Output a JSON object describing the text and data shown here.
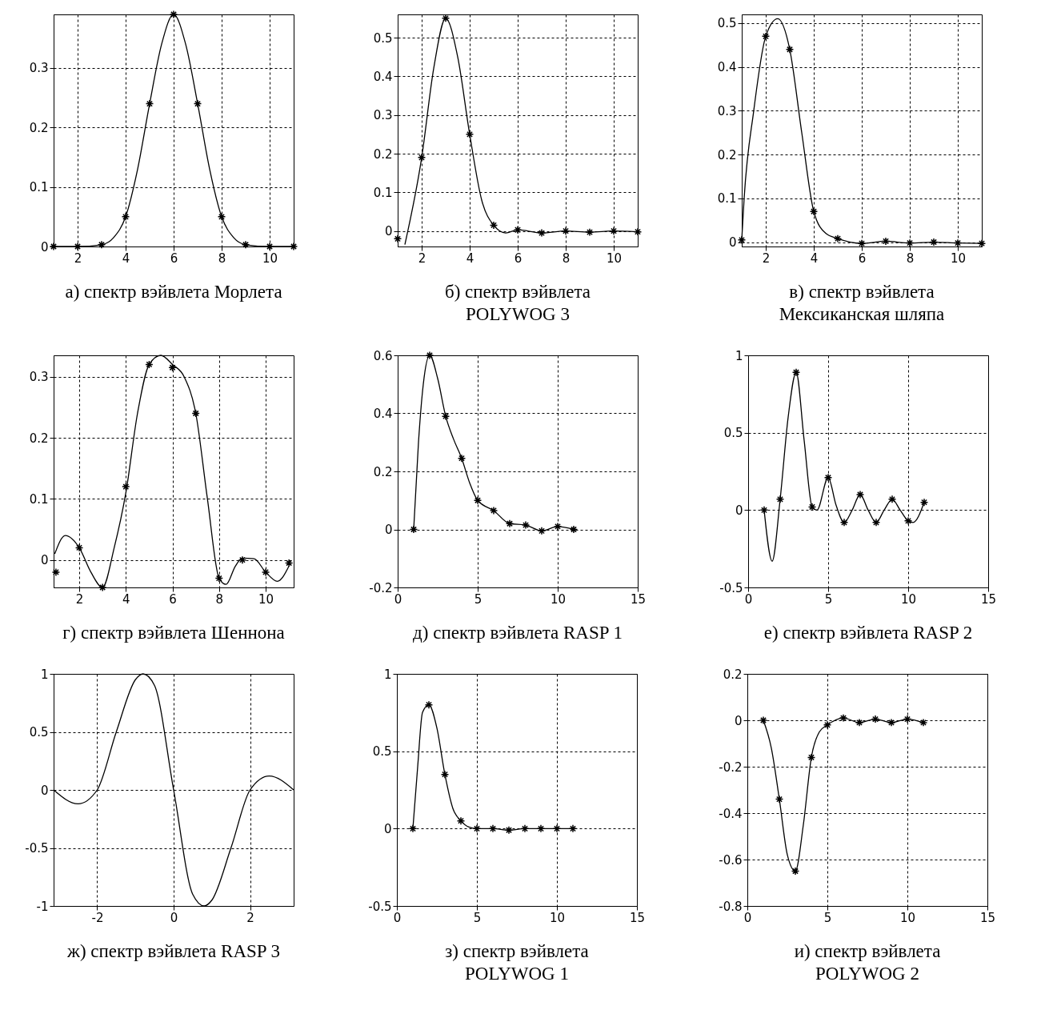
{
  "chart_data": [
    {
      "type": "line",
      "title": "а) спектр вэйвлета Морлета",
      "xlim": [
        1,
        11
      ],
      "xticks": [
        2,
        4,
        6,
        8,
        10
      ],
      "ylim": [
        0,
        0.39
      ],
      "yticks": [
        0,
        0.1,
        0.2,
        0.3
      ],
      "grid": true,
      "series": [
        {
          "type": "line",
          "color": "#000000",
          "marker": "none",
          "x": [
            1,
            2,
            3,
            3.5,
            4,
            4.5,
            5,
            5.5,
            6,
            6.5,
            7,
            7.5,
            8,
            8.5,
            9,
            10,
            11
          ],
          "values": [
            0,
            0,
            0.003,
            0.015,
            0.05,
            0.13,
            0.24,
            0.34,
            0.39,
            0.34,
            0.24,
            0.13,
            0.05,
            0.015,
            0.003,
            0,
            0
          ]
        },
        {
          "type": "scatter",
          "color": "#000000",
          "marker": "cross",
          "x": [
            1,
            2,
            3,
            4,
            5,
            6,
            7,
            8,
            9,
            10,
            11
          ],
          "values": [
            0,
            0,
            0.003,
            0.05,
            0.24,
            0.39,
            0.24,
            0.05,
            0.003,
            0,
            0
          ]
        }
      ]
    },
    {
      "type": "line",
      "title": "б) спектр вэйвлета\nPOLYWOG 3",
      "xlim": [
        1,
        11
      ],
      "xticks": [
        2,
        4,
        6,
        8,
        10
      ],
      "ylim": [
        -0.04,
        0.56
      ],
      "yticks": [
        0,
        0.1,
        0.2,
        0.3,
        0.4,
        0.5
      ],
      "grid": true,
      "series": [
        {
          "type": "line",
          "color": "#000000",
          "marker": "none",
          "x": [
            1.3,
            2,
            2.5,
            3,
            3.5,
            4,
            4.5,
            5,
            5.5,
            6,
            7,
            8,
            9,
            10,
            11
          ],
          "values": [
            -0.035,
            0.19,
            0.42,
            0.55,
            0.45,
            0.25,
            0.08,
            0.015,
            -0.005,
            0.003,
            -0.005,
            0,
            -0.003,
            0,
            -0.002
          ]
        },
        {
          "type": "scatter",
          "color": "#000000",
          "marker": "cross",
          "x": [
            1,
            2,
            3,
            4,
            5,
            6,
            7,
            8,
            9,
            10,
            11
          ],
          "values": [
            -0.02,
            0.19,
            0.55,
            0.25,
            0.015,
            0.003,
            -0.005,
            0,
            -0.003,
            0,
            -0.002
          ]
        }
      ]
    },
    {
      "type": "line",
      "title": "в) спектр вэйвлета\nМексиканская шляпа",
      "xlim": [
        1,
        11
      ],
      "xticks": [
        2,
        4,
        6,
        8,
        10
      ],
      "ylim": [
        -0.01,
        0.52
      ],
      "yticks": [
        0,
        0.1,
        0.2,
        0.3,
        0.4,
        0.5
      ],
      "grid": true,
      "series": [
        {
          "type": "line",
          "color": "#000000",
          "marker": "none",
          "x": [
            1,
            1.1,
            1.5,
            2,
            2.5,
            3,
            3.5,
            4,
            4.5,
            5,
            6,
            7,
            8,
            9,
            10,
            11
          ],
          "values": [
            0.005,
            0.1,
            0.3,
            0.47,
            0.51,
            0.44,
            0.25,
            0.07,
            0.02,
            0.008,
            -0.003,
            0.002,
            -0.002,
            0,
            -0.002,
            -0.003
          ]
        },
        {
          "type": "scatter",
          "color": "#000000",
          "marker": "cross",
          "x": [
            1,
            2,
            3,
            4,
            5,
            6,
            7,
            8,
            9,
            10,
            11
          ],
          "values": [
            0.005,
            0.47,
            0.44,
            0.07,
            0.008,
            -0.003,
            0.002,
            -0.002,
            0,
            -0.002,
            -0.003
          ]
        }
      ]
    },
    {
      "type": "line",
      "title": "г) спектр вэйвлета Шеннона",
      "xlim": [
        0.9,
        11.2
      ],
      "xticks": [
        2,
        4,
        6,
        8,
        10
      ],
      "ylim": [
        -0.045,
        0.335
      ],
      "yticks": [
        0,
        0.1,
        0.2,
        0.3
      ],
      "grid": true,
      "series": [
        {
          "type": "line",
          "color": "#000000",
          "marker": "none",
          "x": [
            0.95,
            1.4,
            2,
            2.5,
            3,
            3.5,
            4,
            4.5,
            5,
            5.5,
            6,
            6.5,
            7,
            7.5,
            8,
            8.3,
            8.7,
            9,
            9.5,
            10,
            10.5,
            11
          ],
          "values": [
            0.01,
            0.04,
            0.02,
            -0.02,
            -0.045,
            0.02,
            0.11,
            0.24,
            0.32,
            0.335,
            0.32,
            0.3,
            0.24,
            0.1,
            -0.03,
            -0.04,
            -0.01,
            0.003,
            0.002,
            -0.02,
            -0.035,
            -0.01
          ]
        },
        {
          "type": "scatter",
          "color": "#000000",
          "marker": "cross",
          "x": [
            1,
            2,
            3,
            4,
            5,
            6,
            7,
            8,
            9,
            10,
            11
          ],
          "values": [
            -0.02,
            0.02,
            -0.045,
            0.12,
            0.32,
            0.315,
            0.24,
            -0.03,
            0,
            -0.02,
            -0.005
          ]
        }
      ]
    },
    {
      "type": "line",
      "title": "д) спектр вэйвлета RASP 1",
      "xlim": [
        0,
        15
      ],
      "xticks": [
        0,
        5,
        10,
        15
      ],
      "ylim": [
        -0.2,
        0.6
      ],
      "yticks": [
        -0.2,
        0,
        0.2,
        0.4,
        0.6
      ],
      "grid": true,
      "series": [
        {
          "type": "line",
          "color": "#000000",
          "marker": "none",
          "x": [
            1,
            1.3,
            1.6,
            2,
            2.5,
            3,
            3.5,
            4,
            4.5,
            5,
            6,
            7,
            8,
            9,
            10,
            11
          ],
          "values": [
            0,
            0.3,
            0.5,
            0.6,
            0.52,
            0.39,
            0.31,
            0.245,
            0.16,
            0.1,
            0.065,
            0.02,
            0.015,
            -0.005,
            0.01,
            0
          ]
        },
        {
          "type": "scatter",
          "color": "#000000",
          "marker": "cross",
          "x": [
            1,
            2,
            3,
            4,
            5,
            6,
            7,
            8,
            9,
            10,
            11
          ],
          "values": [
            0,
            0.6,
            0.39,
            0.245,
            0.1,
            0.065,
            0.02,
            0.015,
            -0.005,
            0.01,
            0
          ]
        }
      ]
    },
    {
      "type": "line",
      "title": "е) спектр вэйвлета RASP 2",
      "xlim": [
        0,
        15
      ],
      "xticks": [
        0,
        5,
        10,
        15
      ],
      "ylim": [
        -0.5,
        1
      ],
      "yticks": [
        -0.5,
        0,
        0.5,
        1
      ],
      "grid": true,
      "series": [
        {
          "type": "line",
          "color": "#000000",
          "marker": "none",
          "x": [
            1,
            1.5,
            2,
            2.5,
            3,
            3.5,
            4,
            4.3,
            5,
            5.5,
            6,
            6.5,
            7,
            7.5,
            8,
            8.5,
            9,
            9.5,
            10,
            10.3,
            11
          ],
          "values": [
            0,
            -0.33,
            0.07,
            0.6,
            0.89,
            0.45,
            0.02,
            0,
            0.21,
            0.03,
            -0.08,
            0,
            0.1,
            0,
            -0.08,
            0,
            0.07,
            0,
            -0.07,
            -0.08,
            0.05
          ]
        },
        {
          "type": "scatter",
          "color": "#000000",
          "marker": "cross",
          "x": [
            1,
            2,
            3,
            4,
            5,
            6,
            7,
            8,
            9,
            10,
            11
          ],
          "values": [
            0,
            0.07,
            0.89,
            0.02,
            0.21,
            -0.08,
            0.1,
            -0.08,
            0.07,
            -0.07,
            0.05
          ]
        }
      ]
    },
    {
      "type": "line",
      "title": "ж) спектр вэйвлета RASP 3",
      "xlim": [
        -3.14,
        3.14
      ],
      "xticks": [
        -2,
        0,
        2
      ],
      "ylim": [
        -1,
        1
      ],
      "yticks": [
        -1,
        -0.5,
        0,
        0.5,
        1
      ],
      "grid": true,
      "series": [
        {
          "type": "line",
          "color": "#000000",
          "marker": "none",
          "x": [
            -3.14,
            -2.5,
            -2,
            -1.5,
            -1,
            -0.8,
            -0.5,
            0,
            0.5,
            0.8,
            1,
            1.5,
            2,
            2.5,
            3.14
          ],
          "values": [
            0,
            -0.12,
            0,
            0.5,
            0.95,
            1,
            0.9,
            0,
            -0.9,
            -1,
            -0.95,
            -0.5,
            0,
            0.12,
            0
          ]
        }
      ]
    },
    {
      "type": "line",
      "title": "з) спектр вэйвлета\nPOLYWOG 1",
      "xlim": [
        0,
        15
      ],
      "xticks": [
        0,
        5,
        10,
        15
      ],
      "ylim": [
        -0.5,
        1
      ],
      "yticks": [
        -0.5,
        0,
        0.5,
        1
      ],
      "grid": true,
      "series": [
        {
          "type": "line",
          "color": "#000000",
          "marker": "none",
          "x": [
            1,
            1.3,
            1.6,
            2,
            2.5,
            3,
            3.5,
            4,
            4.5,
            5,
            6,
            7,
            8,
            9,
            10,
            11
          ],
          "values": [
            0,
            0.4,
            0.75,
            0.8,
            0.65,
            0.35,
            0.13,
            0.05,
            0.01,
            0,
            0,
            -0.01,
            0,
            0,
            0,
            0
          ]
        },
        {
          "type": "scatter",
          "color": "#000000",
          "marker": "cross",
          "x": [
            1,
            2,
            3,
            4,
            5,
            6,
            7,
            8,
            9,
            10,
            11
          ],
          "values": [
            0,
            0.8,
            0.35,
            0.05,
            0,
            0,
            -0.01,
            0,
            0,
            0,
            0
          ]
        }
      ]
    },
    {
      "type": "line",
      "title": "и) спектр вэйвлета\nPOLYWOG 2",
      "xlim": [
        0,
        15
      ],
      "xticks": [
        0,
        5,
        10,
        15
      ],
      "ylim": [
        -0.8,
        0.2
      ],
      "yticks": [
        -0.8,
        -0.6,
        -0.4,
        -0.2,
        0,
        0.2
      ],
      "grid": true,
      "series": [
        {
          "type": "line",
          "color": "#000000",
          "marker": "none",
          "x": [
            1,
            1.5,
            2,
            2.5,
            3,
            3.5,
            4,
            4.5,
            5,
            6,
            7,
            8,
            9,
            10,
            11
          ],
          "values": [
            0,
            -0.12,
            -0.34,
            -0.58,
            -0.65,
            -0.45,
            -0.16,
            -0.05,
            -0.02,
            0.01,
            -0.01,
            0.005,
            -0.01,
            0.005,
            -0.01
          ]
        },
        {
          "type": "scatter",
          "color": "#000000",
          "marker": "cross",
          "x": [
            1,
            2,
            3,
            4,
            5,
            6,
            7,
            8,
            9,
            10,
            11
          ],
          "values": [
            0,
            -0.34,
            -0.65,
            -0.16,
            -0.02,
            0.01,
            -0.01,
            0.005,
            -0.01,
            0.005,
            -0.01
          ]
        }
      ]
    }
  ]
}
